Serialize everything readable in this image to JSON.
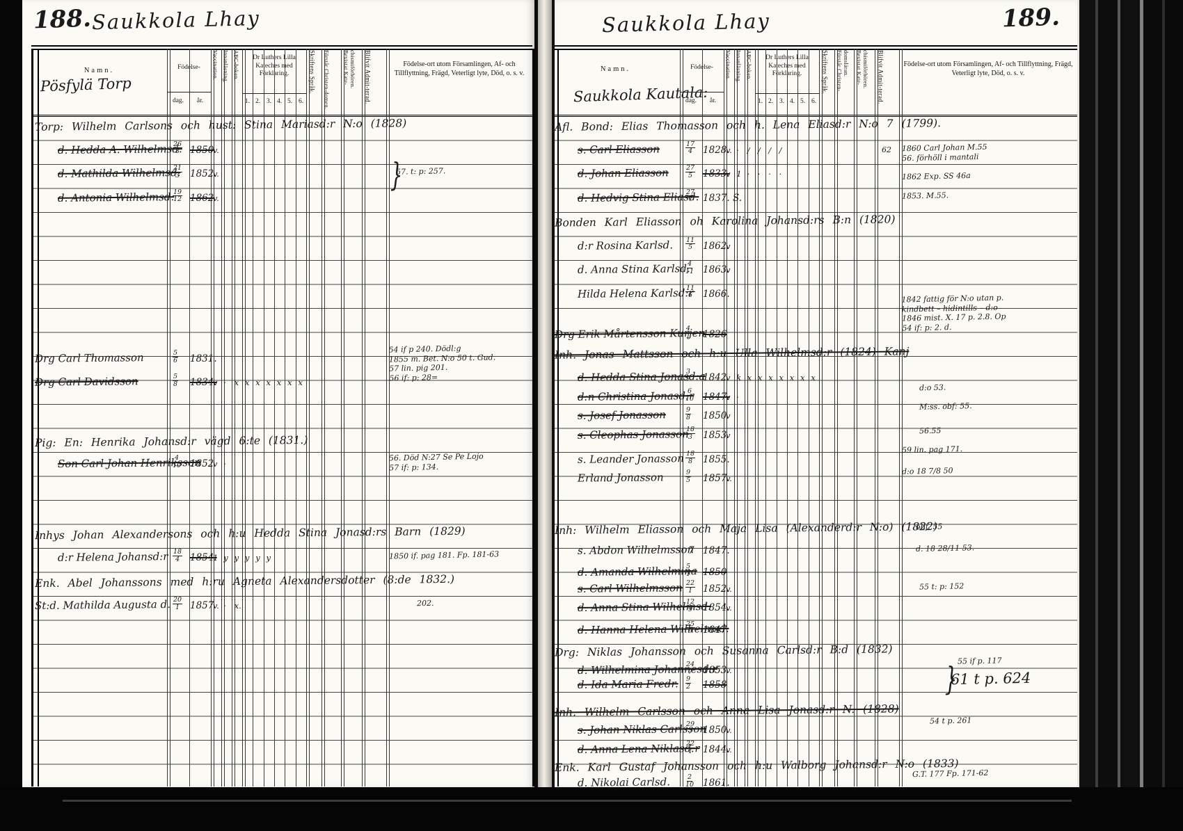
{
  "left_page": {
    "page_number": "188.",
    "page_title": "Saukkola Lhay",
    "name_header_handwritten": "Pösfylä Torp",
    "columns": {
      "name": "Namn.",
      "birth": "Födelse-",
      "birth_day": "dag.",
      "birth_year": "år.",
      "vaccination": "Vaccination.",
      "reading": "Innanläsning.",
      "abc_book": "ABC-boken.",
      "catechism": "Dr Luthers Lilla Kateches med Förklaring.",
      "catechism_numbers": [
        "1.",
        "2.",
        "3.",
        "4.",
        "5.",
        "6."
      ],
      "script": "Skriftens Språk.",
      "understands": "Förstår Christen-domen.",
      "attended": "Bevistat Kate-chismiförhören.",
      "admitted": "Blifvit Admit-terad.",
      "notes": "Födelse-ort utom Församlingen, Af- och Tillflyttning, Frägd, Veterligt lyte, Död, o. s. v."
    },
    "entries": [
      {
        "row": 0,
        "name": "Torp: Wilhelm Carlsons och hust: Stina Mariasd:r N:o (1828)"
      },
      {
        "row": 1,
        "indent": 1,
        "name": "d. Hedda A. Wilhelmsd.",
        "struck": true,
        "day": "26/3",
        "year": "1850",
        "year_struck": true,
        "marks": "v."
      },
      {
        "row": 2,
        "indent": 1,
        "name": "d. Mathilda Wilhelmsd.",
        "struck": true,
        "day": "21/3",
        "year": "1852.",
        "marks": "v.",
        "note": "57. t: p: 257.",
        "brace": true,
        "note_dx": 10
      },
      {
        "row": 3,
        "indent": 1,
        "name": "d. Antonia Wilhelmsd.",
        "struck": true,
        "day": "19/12",
        "year": "1862",
        "year_struck": true,
        "marks": "v."
      },
      {
        "row": 9.7,
        "name": "Drg Carl Thomasson",
        "day": "5/6",
        "year": "1831."
      },
      {
        "row": 10.7,
        "name": "Drg Carl Davidsson",
        "struck": true,
        "day": "5/8",
        "year": "1834.",
        "year_struck": true,
        "marks": "v · x x x x x x x",
        "note": "54 if p 240. Dödl:g\n1855 m. Bet. N:o 50 t. Gud.\n57 lin. pig 201.\n56 if: p: 28=",
        "note_row": 9.4
      },
      {
        "row": 13.2,
        "name": "Pig: En: Henrika Johansd:r vägd 6:te (1831.)"
      },
      {
        "row": 14.1,
        "indent": 1,
        "name": "Son Carl Johan Henriksson",
        "struck": true,
        "day": "4/10",
        "year": "1852",
        "marks": "v ·",
        "note": "56. Död N:27 Se Pe Lojo\n57 if: p: 134.",
        "note_row": 13.9
      },
      {
        "row": 17,
        "name": "Inhys Johan Alexandersons och h:u Hedda Stina Jonasd:rs Barn (1829)"
      },
      {
        "row": 18,
        "indent": 1,
        "name": "d:r Helena Johansd:r",
        "day": "18/4",
        "year": "1854.",
        "year_struck": true,
        "marks": "1 y y y y y",
        "note": "1850 if. pag 181. Fp. 181-63"
      },
      {
        "row": 19,
        "name": "Enk. Abel Johanssons med h:ru Agneta Alexandersdotter (8:de 1832.)"
      },
      {
        "row": 20,
        "name": "St:d. Mathilda Augusta d.",
        "day": "20/1",
        "year": "1857",
        "marks": "v. · x.",
        "note": "202.",
        "note_dx": 40
      }
    ]
  },
  "right_page": {
    "page_number": "189.",
    "page_title": "Saukkola Lhay",
    "name_header_handwritten": "Saukkola Kautala:",
    "columns": {
      "name": "Namn.",
      "birth": "Födelse-",
      "birth_day": "dag.",
      "birth_year": "år.",
      "vaccination": "Vaccination.",
      "reading": "Innanläsning.",
      "abc_book": "ABC-boken.",
      "catechism": "Dr Luthers Lilla Kateches med Förklaring.",
      "catechism_numbers": [
        "1.",
        "2.",
        "3.",
        "4.",
        "5.",
        "6."
      ],
      "script": "Skriftens Språk.",
      "understands": "Förstår Christen-domsläran.",
      "attended": "Bevistat Kate-chismiförhören.",
      "admitted": "Blifvit Admit-terad.",
      "notes": "Födelse-ort utom Församlingen, Af- och Tillflyttning, Frägd, Veterligt lyte, Död, o. s. v."
    },
    "entries": [
      {
        "row": 0,
        "name": "Afl. Bond: Elias Thomasson och h. Lena Eliasd:r N:o 7 (1799)."
      },
      {
        "row": 1,
        "indent": 1,
        "name": "s. Carl Eliasson",
        "struck": true,
        "day": "17/4",
        "year": "1828.",
        "marks": "v. · / / / /",
        "admit": "62",
        "note": "1860 Carl Johan M.55\n56. förhöll i mantali"
      },
      {
        "row": 2,
        "indent": 1,
        "name": "d. Johan Eliasson",
        "struck": true,
        "day": "27/5",
        "year": "1833.",
        "year_struck": true,
        "marks": "v 1 · · · ·",
        "note": "1862  Exp. SS 46a",
        "note_row": 2.2
      },
      {
        "row": 3,
        "indent": 1,
        "name": "d. Hedvig Stina Eliasd.",
        "struck": true,
        "day": "27/7",
        "year": "1837. S.",
        "note": "1853. M.55."
      },
      {
        "row": 4,
        "name": "Bonden Karl Eliasson oh Karolina Johansd:rs B:n (1820)"
      },
      {
        "row": 5,
        "indent": 1,
        "name": "d:r Rosina Karlsd.",
        "day": "11/5",
        "year": "1862.",
        "marks": "v"
      },
      {
        "row": 6,
        "indent": 1,
        "name": "d. Anna Stina Karlsd.",
        "day": "4/11",
        "year": "1863.",
        "marks": "v"
      },
      {
        "row": 7,
        "indent": 1,
        "name": "Hilda Helena Karlsd:r",
        "day": "11/6",
        "year": "1866."
      },
      {
        "row": 8.7,
        "name": "Drg Erik Mårtensson Kurjen",
        "struck": true,
        "day": "4/1",
        "year": "1826",
        "year_struck": true,
        "note": "1842 fattig för N:o utan p.\nkindbett – hidintills – d:o\n1846 mist. X. 17 p. 2.8. Op\n54 if: p: 2. d.",
        "note_row": 7.3
      },
      {
        "row": 9.5,
        "name": "Inh. Jonas Mattsson och h:u Ulla Wilhelmsd:r (1824) Kanj",
        "struck": true
      },
      {
        "row": 10.5,
        "indent": 1,
        "name": "d. Hedda Stina Jonasd:a",
        "struck": true,
        "day": "3/7",
        "year": "1842",
        "marks": "v k x x x x x x x",
        "note": "d:o 53.",
        "note_row": 11,
        "note_dx": 25
      },
      {
        "row": 11.3,
        "indent": 1,
        "name": "d:n Christina Jonasd:r",
        "struck": true,
        "day": "6/10",
        "year": "1847.",
        "year_struck": true,
        "marks": "v ·",
        "note": "M:ss. obf: 55.",
        "note_row": 11.8,
        "note_dx": 25
      },
      {
        "row": 12.1,
        "indent": 1,
        "name": "s. Josef Jonasson",
        "struck": true,
        "day": "9/8",
        "year": "1850",
        "marks": "v",
        "note": "56.55",
        "note_row": 12.8,
        "note_dx": 25
      },
      {
        "row": 12.9,
        "indent": 1,
        "name": "s. Cleophas Jonasson",
        "struck": true,
        "day": "18/3",
        "year": "1853",
        "marks": "v",
        "note": "59 lin. pag 171.",
        "note_row": 13.6
      },
      {
        "row": 13.9,
        "indent": 1,
        "name": "s. Leander Jonasson",
        "day": "18/8",
        "year": "1855.",
        "note": "d:o 18 7/8 50",
        "note_row": 14.5
      },
      {
        "row": 14.7,
        "indent": 1,
        "name": "Erland Jonasson",
        "day": "9/5",
        "year": "1857.",
        "marks": "v."
      },
      {
        "row": 16.8,
        "name": "Inh: Wilhelm Eliasson och Maja Lisa (Alexanderd:r N:o) (1822)",
        "note": "obf. 55",
        "note_dx": 20
      },
      {
        "row": 17.7,
        "indent": 1,
        "name": "s. Abdon Wilhelmsson",
        "day": "7",
        "year": "1847.",
        "note": "d. 18 28/11 53.",
        "note_dx": 20
      },
      {
        "row": 18.6,
        "indent": 1,
        "name": "d. Amanda Wilhelmina",
        "struck": true,
        "day": "5/1",
        "year": "1850",
        "year_struck": true
      },
      {
        "row": 19.3,
        "indent": 1,
        "name": "s. Carl Wilhelmsson",
        "struck": true,
        "day": "22/1",
        "year": "1852.",
        "marks": "v.",
        "note": "55 t: p: 152",
        "note_dx": 25
      },
      {
        "row": 20.1,
        "indent": 1,
        "name": "d. Anna Stina Wilhelmsd.",
        "struck": true,
        "day": "12/9",
        "year": "1854.",
        "marks": "v."
      },
      {
        "row": 21,
        "indent": 1,
        "name": "d. Hanna Helena Wilhelmsd.",
        "struck": true,
        "day": "25/9",
        "year": "1847"
      },
      {
        "row": 21.9,
        "name": "Drg: Niklas Johansson och Susanna Carlsd:r B:d (1832)",
        "note": "55 if p. 117",
        "note_row": 22.4,
        "note_dx": 80
      },
      {
        "row": 22.7,
        "indent": 1,
        "name": "d. Wilhelmina Johannesd:r",
        "struck": true,
        "day": "24/7",
        "year": "1853",
        "marks": "v.",
        "note": "61 t p. 624",
        "brace": true,
        "note_big": true,
        "note_row": 23,
        "note_dx": 70
      },
      {
        "row": 23.3,
        "indent": 1,
        "name": "d. Ida Maria Fredr.",
        "struck": true,
        "day": "9/2",
        "year": "1858",
        "year_struck": true
      },
      {
        "row": 24.4,
        "name": "Inh. Wilhelm Carlsson och Anna Lisa Jonasd:r N. (1828)",
        "struck": true,
        "note": "54 t p. 261",
        "note_row": 24.9,
        "note_dx": 40
      },
      {
        "row": 25.2,
        "indent": 1,
        "name": "s. Johan Niklas Carlsson",
        "struck": true,
        "day": "29/7",
        "year": "1850",
        "marks": "v."
      },
      {
        "row": 26,
        "indent": 1,
        "name": "d. Anna Lena Niklasd:r",
        "struck": true,
        "day": "22/1",
        "year": "1844.",
        "marks": "v."
      },
      {
        "row": 26.7,
        "name": "Enk. Karl Gustaf Johansson och h:u Walborg Johansd:r N:o (1833)",
        "note": "G.T. 177  Fp. 171-62",
        "note_row": 27.1,
        "note_dx": 15
      },
      {
        "row": 27.4,
        "indent": 1,
        "name": "d. Nikolai Carlsd.",
        "day": "2/10",
        "year": "1861."
      }
    ]
  }
}
